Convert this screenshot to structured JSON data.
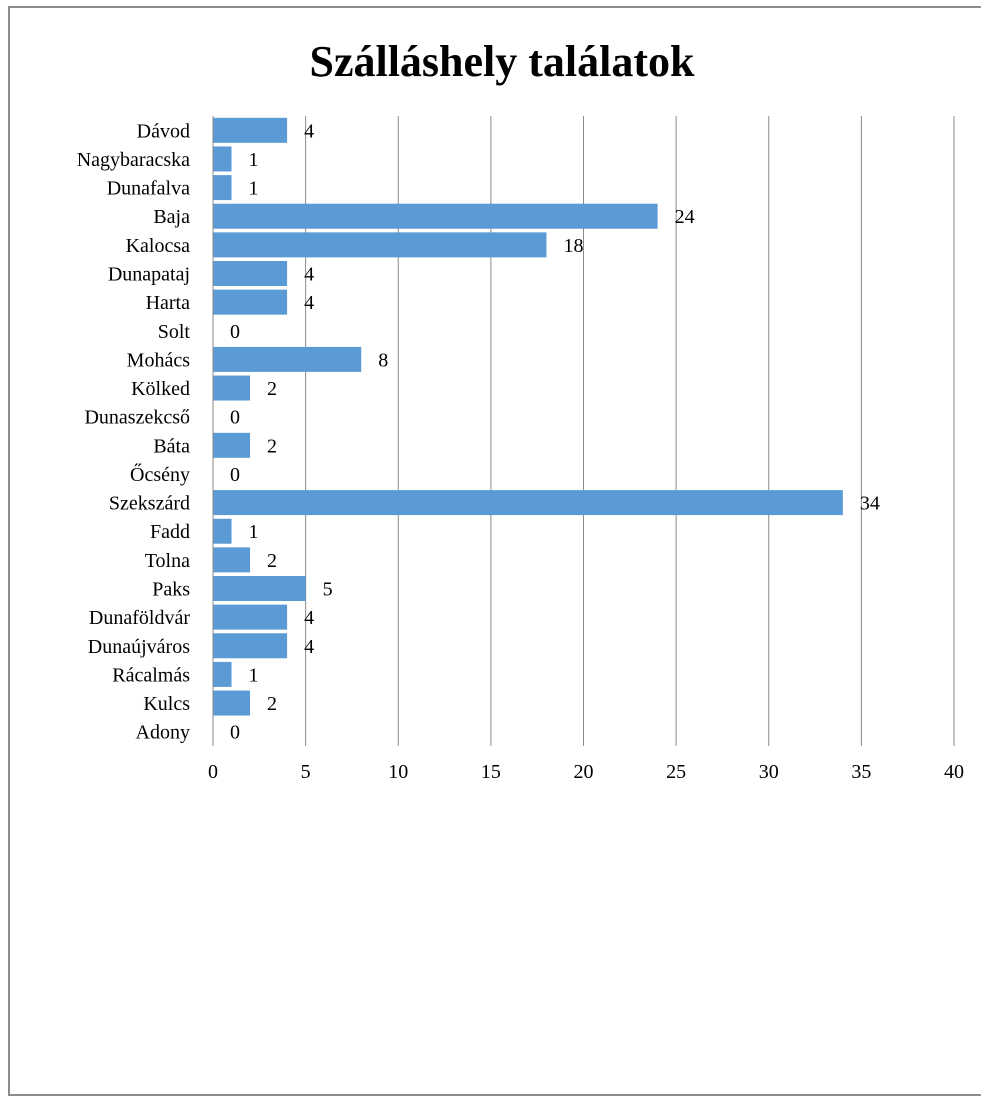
{
  "chart_data": {
    "type": "bar",
    "orientation": "horizontal",
    "title": "Szálláshely találatok",
    "xlabel": "",
    "ylabel": "",
    "categories": [
      "Dávod",
      "Nagybaracska",
      "Dunafalva",
      "Baja",
      "Kalocsa",
      "Dunapataj",
      "Harta",
      "Solt",
      "Mohács",
      "Kölked",
      "Dunaszekcső",
      "Báta",
      "Őcsény",
      "Szekszárd",
      "Fadd",
      "Tolna",
      "Paks",
      "Dunaföldvár",
      "Dunaújváros",
      "Rácalmás",
      "Kulcs",
      "Adony"
    ],
    "values": [
      4,
      1,
      1,
      24,
      18,
      4,
      4,
      0,
      8,
      2,
      0,
      2,
      0,
      34,
      1,
      2,
      5,
      4,
      4,
      1,
      2,
      0
    ],
    "xlim": [
      0,
      40
    ],
    "xticks": [
      0,
      5,
      10,
      15,
      20,
      25,
      30,
      35,
      40
    ],
    "grid": "vertical",
    "legend": "none",
    "data_labels": true,
    "bar_color": "#5b9bd5"
  }
}
